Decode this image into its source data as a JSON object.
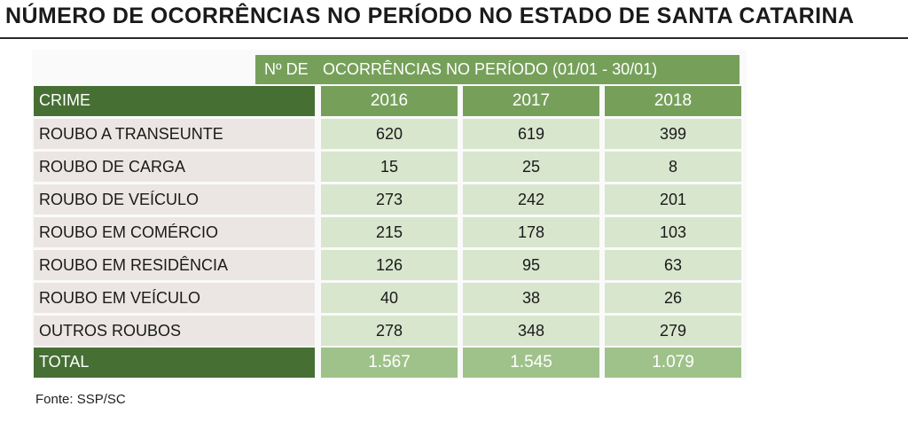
{
  "title": "NÚMERO DE OCORRÊNCIAS NO PERÍODO NO ESTADO DE SANTA CATARINA",
  "source": "Fonte: SSP/SC",
  "chart_data": {
    "type": "table",
    "super_header_left": "Nº DE",
    "super_header_right": "OCORRÊNCIAS NO PERÍODO (01/01 - 30/01)",
    "row_header_label": "CRIME",
    "columns": [
      "2016",
      "2017",
      "2018"
    ],
    "rows": [
      {
        "label": "ROUBO A TRANSEUNTE",
        "values": [
          "620",
          "619",
          "399"
        ]
      },
      {
        "label": "ROUBO DE CARGA",
        "values": [
          "15",
          "25",
          "8"
        ]
      },
      {
        "label": "ROUBO DE VEÍCULO",
        "values": [
          "273",
          "242",
          "201"
        ]
      },
      {
        "label": "ROUBO EM COMÉRCIO",
        "values": [
          "215",
          "178",
          "103"
        ]
      },
      {
        "label": "ROUBO EM RESIDÊNCIA",
        "values": [
          "126",
          "95",
          "63"
        ]
      },
      {
        "label": "ROUBO EM VEÍCULO",
        "values": [
          "40",
          "38",
          "26"
        ]
      },
      {
        "label": "OUTROS ROUBOS",
        "values": [
          "278",
          "348",
          "279"
        ]
      }
    ],
    "total": {
      "label": "TOTAL",
      "values": [
        "1.567",
        "1.545",
        "1.079"
      ]
    },
    "colors": {
      "header_dark": "#466f34",
      "header_light": "#76a05a",
      "value_cell": "#d8e6cd",
      "label_cell": "#ebe6e4",
      "total_value": "#9fc28a"
    }
  }
}
